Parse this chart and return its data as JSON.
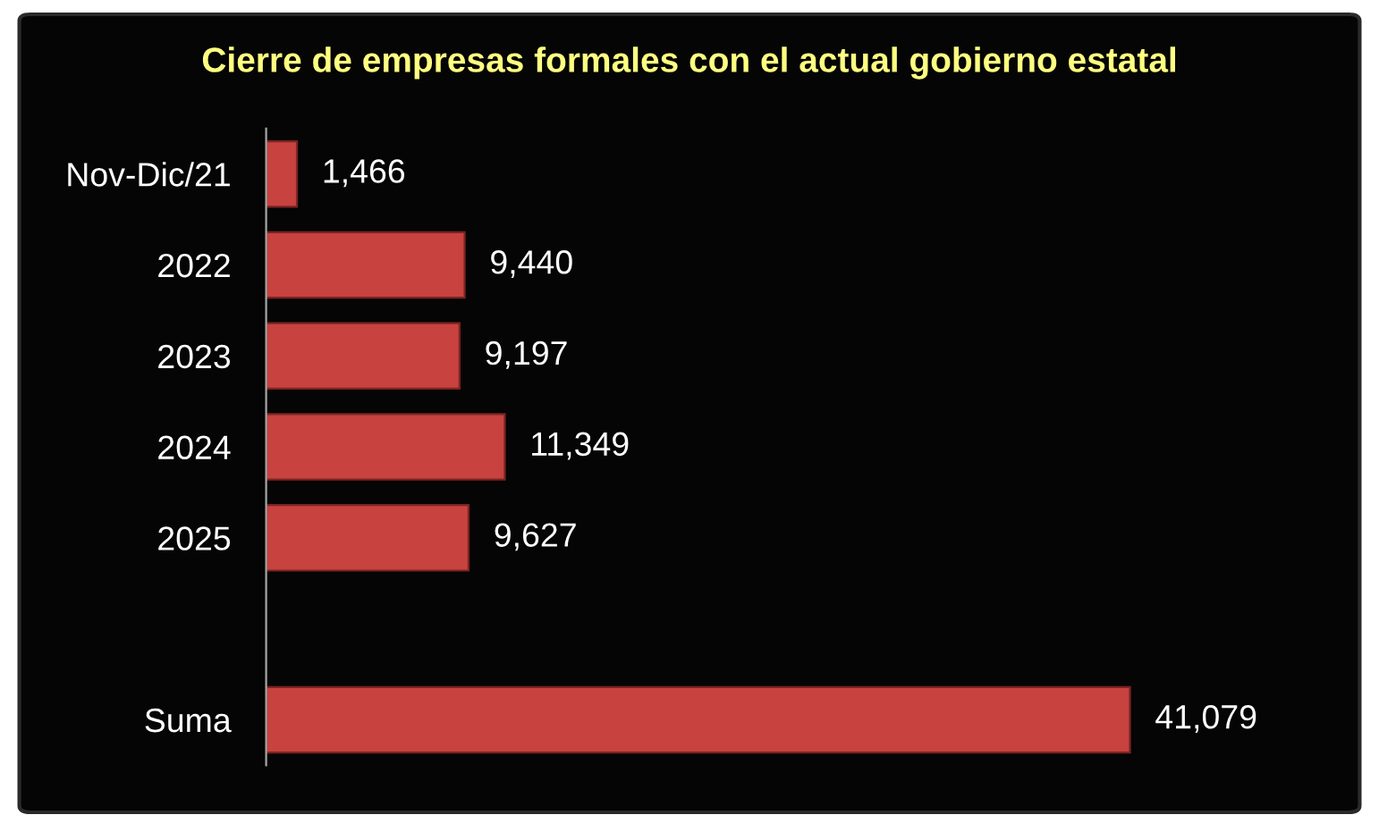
{
  "chart_data": {
    "type": "bar",
    "orientation": "horizontal",
    "title": "Cierre de empresas formales con el actual gobierno estatal",
    "categories": [
      "Nov-Dic/21",
      "2022",
      "2023",
      "2024",
      "2025",
      null,
      "Suma"
    ],
    "values": [
      1466,
      9440,
      9197,
      11349,
      9627,
      null,
      41079
    ],
    "value_labels": [
      "1,466",
      "9,440",
      "9,197",
      "11,349",
      "9,627",
      null,
      "41,079"
    ],
    "color": "#c8423f",
    "tick_labels": "y"
  }
}
